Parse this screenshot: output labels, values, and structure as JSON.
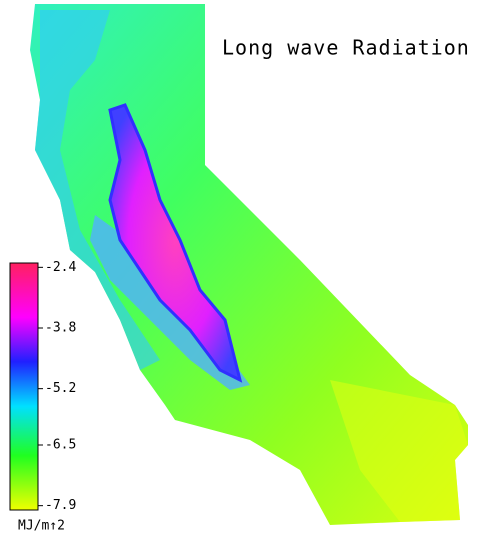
{
  "title": "Long wave Radiation",
  "colorbar": {
    "lim": [
      -8.0,
      -2.3
    ],
    "ticks": [
      -2.4,
      -3.8,
      -5.2,
      -6.5,
      -7.9
    ],
    "unit": "MJ/m↑2"
  }
}
